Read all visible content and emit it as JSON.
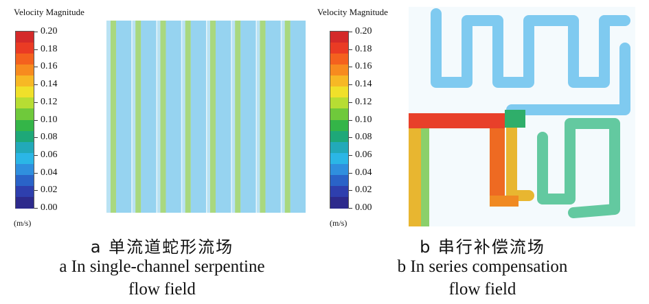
{
  "colorbar": {
    "title": "Velocity Magnitude",
    "unit": "(m/s)",
    "ticks": [
      "0.20",
      "0.18",
      "0.16",
      "0.14",
      "0.12",
      "0.10",
      "0.08",
      "0.06",
      "0.04",
      "0.02",
      "0.00"
    ],
    "colors": [
      "#d42a2a",
      "#ea3b24",
      "#f4611e",
      "#f78b1f",
      "#f7b825",
      "#f0e02a",
      "#b7dd33",
      "#6fc93b",
      "#34b548",
      "#1ea878",
      "#22a9b9",
      "#2bb6e6",
      "#2f8fde",
      "#2a63c8",
      "#2e3fae",
      "#2d2a8c"
    ]
  },
  "panels": [
    {
      "caption_cn": "a 单流道蛇形流场",
      "caption_en_1": "a In single-channel serpentine",
      "caption_en_2": "flow field"
    },
    {
      "caption_cn": "b 串行补偿流场",
      "caption_en_1": "b In series compensation",
      "caption_en_2": "flow field"
    }
  ],
  "chart_data": [
    {
      "type": "heatmap",
      "title": "Velocity Magnitude",
      "colorbar_label": "(m/s)",
      "colorbar_range": [
        0.0,
        0.2
      ],
      "colorbar_ticks": [
        0.0,
        0.02,
        0.04,
        0.06,
        0.08,
        0.1,
        0.12,
        0.14,
        0.16,
        0.18,
        0.2
      ],
      "panel": "a In single-channel serpentine flow field",
      "description": "vertical channels with ~0.06 m/s background and ~0.12 m/s streaks"
    },
    {
      "type": "heatmap",
      "title": "Velocity Magnitude",
      "colorbar_label": "(m/s)",
      "colorbar_range": [
        0.0,
        0.2
      ],
      "colorbar_ticks": [
        0.0,
        0.02,
        0.04,
        0.06,
        0.08,
        0.1,
        0.12,
        0.14,
        0.16,
        0.18,
        0.2
      ],
      "panel": "b In series compensation flow field",
      "description": "serpentine channels ~0.06 m/s, inlet region up to ~0.20 m/s"
    }
  ]
}
